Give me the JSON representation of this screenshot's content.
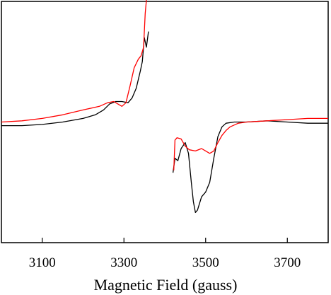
{
  "chart_data": {
    "type": "line",
    "xlabel": "Magnetic Field (gauss)",
    "ylabel": "",
    "xlim": [
      3000,
      3800
    ],
    "ylim": [
      -1.0,
      1.0
    ],
    "xticks": [
      3100,
      3300,
      3500,
      3700
    ],
    "grid": false,
    "legend": "none",
    "series": [
      {
        "color": "#000000",
        "segments": [
          [
            [
              3000,
              -0.03
            ],
            [
              3050,
              -0.03
            ],
            [
              3100,
              -0.02
            ],
            [
              3150,
              0.0
            ],
            [
              3200,
              0.03
            ],
            [
              3230,
              0.06
            ],
            [
              3250,
              0.1
            ],
            [
              3265,
              0.15
            ],
            [
              3280,
              0.17
            ],
            [
              3295,
              0.17
            ],
            [
              3310,
              0.16
            ],
            [
              3320,
              0.2
            ],
            [
              3330,
              0.28
            ],
            [
              3340,
              0.42
            ],
            [
              3345,
              0.5
            ],
            [
              3350,
              0.7
            ],
            [
              3355,
              0.62
            ],
            [
              3360,
              0.75
            ]
          ],
          [
            [
              3420,
              -0.42
            ],
            [
              3425,
              -0.3
            ],
            [
              3432,
              -0.32
            ],
            [
              3440,
              -0.22
            ],
            [
              3450,
              -0.17
            ],
            [
              3458,
              -0.26
            ],
            [
              3465,
              -0.5
            ],
            [
              3470,
              -0.66
            ],
            [
              3475,
              -0.75
            ],
            [
              3480,
              -0.73
            ],
            [
              3490,
              -0.62
            ],
            [
              3500,
              -0.58
            ],
            [
              3510,
              -0.5
            ],
            [
              3520,
              -0.3
            ],
            [
              3530,
              -0.12
            ],
            [
              3540,
              -0.04
            ],
            [
              3550,
              -0.01
            ],
            [
              3570,
              0.0
            ],
            [
              3600,
              0.0
            ],
            [
              3650,
              0.01
            ],
            [
              3700,
              0.0
            ],
            [
              3750,
              -0.01
            ],
            [
              3800,
              -0.01
            ]
          ]
        ]
      },
      {
        "color": "#ff0000",
        "segments": [
          [
            [
              3000,
              0.0
            ],
            [
              3050,
              0.01
            ],
            [
              3100,
              0.03
            ],
            [
              3150,
              0.06
            ],
            [
              3200,
              0.1
            ],
            [
              3240,
              0.13
            ],
            [
              3260,
              0.16
            ],
            [
              3275,
              0.17
            ],
            [
              3285,
              0.15
            ],
            [
              3295,
              0.13
            ],
            [
              3305,
              0.16
            ],
            [
              3315,
              0.3
            ],
            [
              3325,
              0.45
            ],
            [
              3335,
              0.52
            ],
            [
              3342,
              0.55
            ],
            [
              3348,
              0.62
            ],
            [
              3352,
              0.9
            ],
            [
              3356,
              1.05
            ]
          ],
          [
            [
              3422,
              -0.4
            ],
            [
              3425,
              -0.15
            ],
            [
              3430,
              -0.13
            ],
            [
              3440,
              -0.14
            ],
            [
              3450,
              -0.2
            ],
            [
              3460,
              -0.23
            ],
            [
              3475,
              -0.24
            ],
            [
              3490,
              -0.22
            ],
            [
              3500,
              -0.24
            ],
            [
              3510,
              -0.26
            ],
            [
              3520,
              -0.24
            ],
            [
              3530,
              -0.17
            ],
            [
              3540,
              -0.11
            ],
            [
              3550,
              -0.07
            ],
            [
              3560,
              -0.04
            ],
            [
              3580,
              -0.01
            ],
            [
              3600,
              0.0
            ],
            [
              3650,
              0.01
            ],
            [
              3700,
              0.02
            ],
            [
              3750,
              0.03
            ],
            [
              3800,
              0.03
            ]
          ]
        ]
      }
    ]
  }
}
